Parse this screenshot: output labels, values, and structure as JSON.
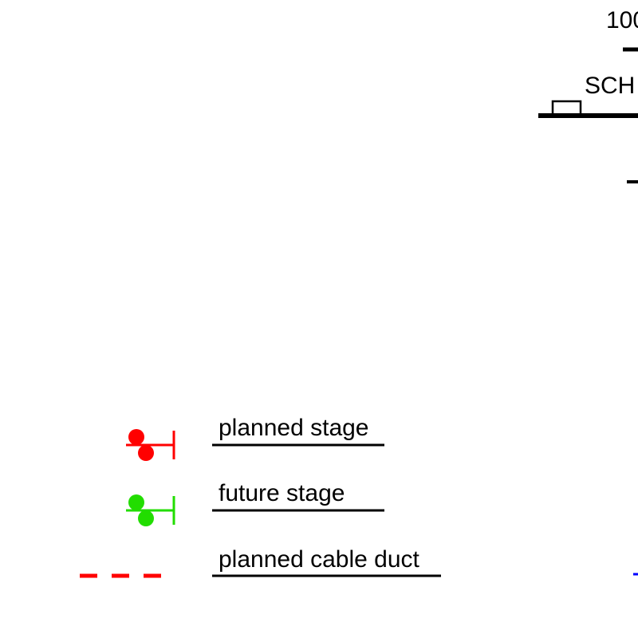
{
  "colors": {
    "background": "#ffffff",
    "line": "#000000",
    "planned": "#ff0000",
    "future": "#22dd00",
    "blue_mark": "#0000ff"
  },
  "diagram": {
    "top_right": {
      "number_label": "100",
      "station_label": "SCH"
    },
    "legend": {
      "items": [
        {
          "symbol": "signal-stage-icon",
          "color": "planned",
          "label": "planned stage"
        },
        {
          "symbol": "signal-stage-icon",
          "color": "future",
          "label": "future stage"
        },
        {
          "symbol": "dashed-line-icon",
          "color": "planned",
          "label": "planned cable duct"
        }
      ]
    }
  }
}
